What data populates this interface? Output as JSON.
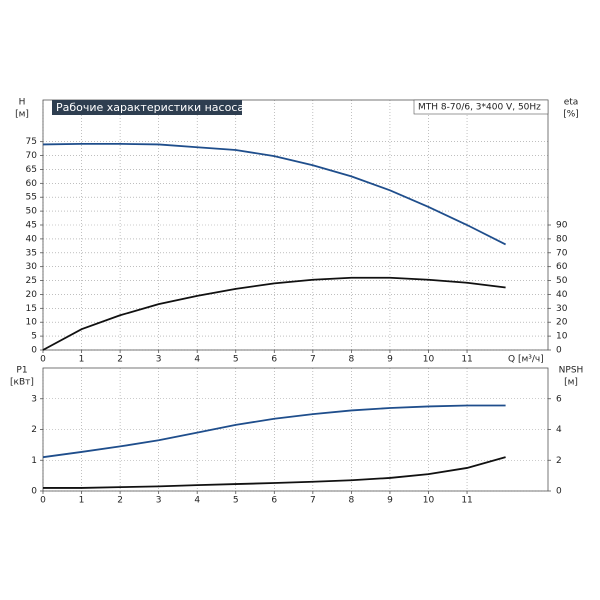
{
  "chart_data": [
    {
      "type": "line",
      "title": "Рабочие характеристики насоса",
      "annotation": "MTH 8-70/6, 3*400 V, 50Hz",
      "y_label": "H",
      "y_unit": "[м]",
      "y2_label": "eta",
      "y2_unit": "[%]",
      "x_label": "Q [м³/ч]",
      "x": [
        0,
        1,
        2,
        3,
        4,
        5,
        6,
        7,
        8,
        9,
        10,
        11,
        12
      ],
      "xlim": [
        0,
        13.1
      ],
      "xticks": [
        0,
        1,
        2,
        3,
        4,
        5,
        6,
        7,
        8,
        9,
        10,
        11
      ],
      "ylim": [
        0,
        90
      ],
      "yticks": [
        0,
        5,
        10,
        15,
        20,
        25,
        30,
        35,
        40,
        45,
        50,
        55,
        60,
        65,
        70,
        75
      ],
      "y2lim": [
        0,
        180
      ],
      "y2ticks": [
        0,
        10,
        20,
        30,
        40,
        50,
        60,
        70,
        80,
        90
      ],
      "grid": true,
      "series": [
        {
          "name": "H",
          "color": "#1f4e8c",
          "values": [
            74,
            74.2,
            74.2,
            74,
            73,
            72,
            69.8,
            66.5,
            62.5,
            57.5,
            51.5,
            45,
            38
          ]
        },
        {
          "name": "eta",
          "color": "#111111",
          "axis": "y2",
          "values": [
            0,
            15,
            25,
            33,
            39,
            44,
            48,
            50.6,
            52,
            52,
            50.6,
            48.4,
            45
          ]
        }
      ]
    },
    {
      "type": "line",
      "y_label": "P1",
      "y_unit": "[кВт]",
      "y2_label": "NPSH",
      "y2_unit": "[м]",
      "x": [
        0,
        1,
        2,
        3,
        4,
        5,
        6,
        7,
        8,
        9,
        10,
        11,
        12
      ],
      "xlim": [
        0,
        13.1
      ],
      "xticks": [
        0,
        1,
        2,
        3,
        4,
        5,
        6,
        7,
        8,
        9,
        10,
        11
      ],
      "ylim": [
        0,
        4
      ],
      "yticks": [
        0,
        1,
        2,
        3
      ],
      "y2lim": [
        0,
        8
      ],
      "y2ticks": [
        0,
        2,
        4,
        6
      ],
      "grid": true,
      "series": [
        {
          "name": "P1",
          "color": "#1f4e8c",
          "values": [
            1.1,
            1.27,
            1.45,
            1.65,
            1.9,
            2.15,
            2.35,
            2.5,
            2.62,
            2.7,
            2.75,
            2.78,
            2.78
          ]
        },
        {
          "name": "NPSH",
          "color": "#111111",
          "axis": "y2",
          "values": [
            0.2,
            0.2,
            0.25,
            0.3,
            0.38,
            0.45,
            0.52,
            0.6,
            0.7,
            0.85,
            1.1,
            1.5,
            2.2
          ]
        }
      ]
    }
  ]
}
